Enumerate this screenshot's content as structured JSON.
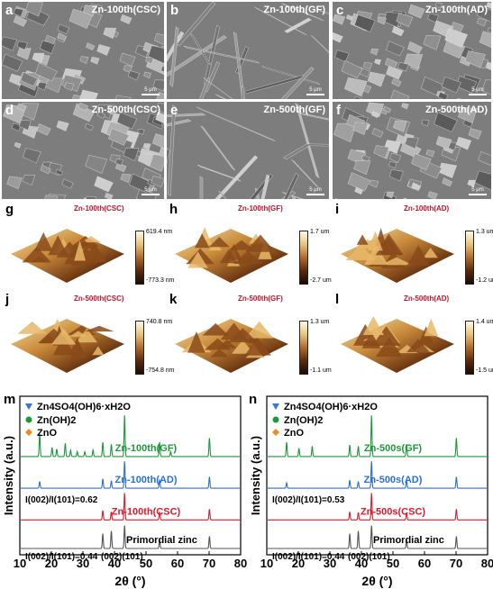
{
  "sem_panels": [
    {
      "letter": "a",
      "title": "Zn-100th(CSC)",
      "scale": "5 μm"
    },
    {
      "letter": "b",
      "title": "Zn-100th(GF)",
      "scale": "5 μm"
    },
    {
      "letter": "c",
      "title": "Zn-100th(AD)",
      "scale": "5 μm"
    },
    {
      "letter": "d",
      "title": "Zn-500th(CSC)",
      "scale": "5 μm"
    },
    {
      "letter": "e",
      "title": "Zn-500th(GF)",
      "scale": "5 μm"
    },
    {
      "letter": "f",
      "title": "Zn-500th(AD)",
      "scale": "5 μm"
    }
  ],
  "afm_panels": [
    {
      "letter": "g",
      "title": "Zn-100th(CSC)",
      "max": "619.4 nm",
      "min": "-773.3 nm"
    },
    {
      "letter": "h",
      "title": "Zn-100th(GF)",
      "max": "1.7 um",
      "min": "-2.7 um"
    },
    {
      "letter": "i",
      "title": "Zn-100th(AD)",
      "max": "1.3 um",
      "min": "-1.2 um"
    },
    {
      "letter": "j",
      "title": "Zn-500th(CSC)",
      "max": "740.8 nm",
      "min": "-754.8 nm"
    },
    {
      "letter": "k",
      "title": "Zn-500th(GF)",
      "max": "1.3 um",
      "min": "-1.1 um"
    },
    {
      "letter": "l",
      "title": "Zn-500th(AD)",
      "max": "1.4 um",
      "min": "-1.5 um"
    }
  ],
  "chart_data": [
    {
      "type": "line",
      "panel": "m",
      "xlabel": "2θ (°)",
      "ylabel": "Intensity (a.u.)",
      "xlim": [
        10,
        80
      ],
      "xticks": [
        10,
        20,
        30,
        40,
        50,
        60,
        70,
        80
      ],
      "legend": [
        "Zn4SO4(OH)6·xH2O",
        "Zn(OH)2",
        "ZnO"
      ],
      "legend_placement": "top-left",
      "series": [
        {
          "name": "Zn-100th(GF)",
          "color": "#1a9a3a",
          "peaks": [
            [
              16.3,
              0.55
            ],
            [
              20.2,
              0.22
            ],
            [
              21.7,
              0.18
            ],
            [
              24.4,
              0.32
            ],
            [
              26.1,
              0.15
            ],
            [
              28.2,
              0.12
            ],
            [
              30.6,
              0.12
            ],
            [
              33.2,
              0.16
            ],
            [
              36.3,
              0.35
            ],
            [
              39.0,
              0.3
            ],
            [
              43.2,
              1.0
            ],
            [
              54.3,
              0.35
            ],
            [
              57.8,
              0.12
            ],
            [
              70.1,
              0.45
            ]
          ]
        },
        {
          "name": "Zn-100th(AD)",
          "color": "#2a6fd6",
          "peaks": [
            [
              16.3,
              0.25
            ],
            [
              36.3,
              0.35
            ],
            [
              39.0,
              0.28
            ],
            [
              43.2,
              1.0
            ],
            [
              54.3,
              0.32
            ],
            [
              70.1,
              0.42
            ]
          ]
        },
        {
          "name": "Zn-100th(CSC)",
          "color": "#e0192c",
          "peaks": [
            [
              36.3,
              0.35
            ],
            [
              39.0,
              0.3
            ],
            [
              43.2,
              1.0
            ],
            [
              54.3,
              0.3
            ],
            [
              70.1,
              0.4
            ]
          ]
        },
        {
          "name": "Primordial zinc",
          "color": "#555555",
          "peaks": [
            [
              36.3,
              0.55
            ],
            [
              39.0,
              0.65
            ],
            [
              43.2,
              0.85
            ],
            [
              54.3,
              0.3
            ],
            [
              70.1,
              0.45
            ]
          ]
        }
      ],
      "annotations": [
        "I(002)/I(101)=0.62",
        "I(002)/I(101)=0.44",
        "(002)(101)"
      ]
    },
    {
      "type": "line",
      "panel": "n",
      "xlabel": "2θ (°)",
      "ylabel": "Intensity (a.u.)",
      "xlim": [
        10,
        80
      ],
      "xticks": [
        10,
        20,
        30,
        40,
        50,
        60,
        70,
        80
      ],
      "legend": [
        "Zn4SO4(OH)6·xH2O",
        "Zn(OH)2",
        "ZnO"
      ],
      "legend_placement": "top-left",
      "series": [
        {
          "name": "Zn-500s(GF)",
          "color": "#1a9a3a",
          "peaks": [
            [
              16.3,
              0.35
            ],
            [
              20.2,
              0.2
            ],
            [
              24.4,
              0.25
            ],
            [
              36.3,
              0.28
            ],
            [
              39.0,
              0.25
            ],
            [
              43.2,
              1.0
            ],
            [
              54.3,
              0.3
            ],
            [
              70.1,
              0.45
            ]
          ]
        },
        {
          "name": "Zn-500s(AD)",
          "color": "#2a6fd6",
          "peaks": [
            [
              16.3,
              0.2
            ],
            [
              36.3,
              0.3
            ],
            [
              39.0,
              0.25
            ],
            [
              43.2,
              1.0
            ],
            [
              54.3,
              0.3
            ],
            [
              70.1,
              0.42
            ]
          ]
        },
        {
          "name": "Zn-500s(CSC)",
          "color": "#e0192c",
          "peaks": [
            [
              36.3,
              0.3
            ],
            [
              39.0,
              0.28
            ],
            [
              43.2,
              1.0
            ],
            [
              54.3,
              0.28
            ],
            [
              70.1,
              0.4
            ]
          ]
        },
        {
          "name": "Primordial zinc",
          "color": "#555555",
          "peaks": [
            [
              36.3,
              0.55
            ],
            [
              39.0,
              0.65
            ],
            [
              43.2,
              0.85
            ],
            [
              54.3,
              0.3
            ],
            [
              70.1,
              0.45
            ]
          ]
        }
      ],
      "annotations": [
        "I(002)/I(101)=0.53",
        "I(002)/I(101)=0.44",
        "(002)(101)"
      ]
    }
  ],
  "colors": {
    "sem_bg": "#7d7d7d",
    "label_red": "#c0142c",
    "legend_triangle": "#3a74d8",
    "legend_circle": "#1a9a3a",
    "legend_diamond": "#f08c1a"
  }
}
